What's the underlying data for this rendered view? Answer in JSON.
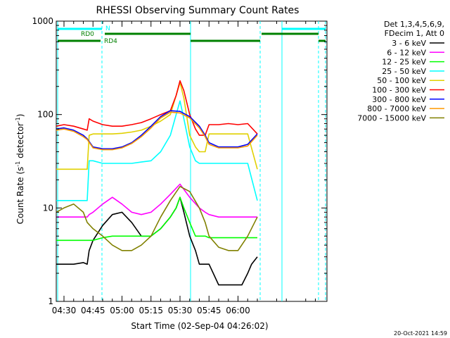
{
  "chart_data": {
    "type": "line",
    "title": "RHESSI Observing Summary Count Rates",
    "xlabel": "Start Time (02-Sep-04 04:26:02)",
    "ylabel_main": "Count Rate (s",
    "ylabel_sup1": "-1",
    "ylabel_mid": " detector",
    "ylabel_sup2": "-1",
    "ylabel_end": ")",
    "y_scale": "log",
    "ylim": [
      1,
      1000
    ],
    "x_range_minutes": [
      26,
      166
    ],
    "x_ticks": [
      {
        "label": "04:30",
        "minute": 30
      },
      {
        "label": "04:45",
        "minute": 45
      },
      {
        "label": "05:00",
        "minute": 60
      },
      {
        "label": "05:15",
        "minute": 75
      },
      {
        "label": "05:30",
        "minute": 90
      },
      {
        "label": "05:45",
        "minute": 105
      },
      {
        "label": "06:00",
        "minute": 120
      }
    ],
    "y_ticks": [
      {
        "label": "1",
        "value": 1
      },
      {
        "label": "10",
        "value": 10
      },
      {
        "label": "100",
        "value": 100
      },
      {
        "label": "1000",
        "value": 1000
      }
    ],
    "legend_header": [
      "Det 1,3,4,5,6,9,",
      "FDecim 1, Att 0"
    ],
    "footer_date": "20-Oct-2021 14:59",
    "flags": [
      {
        "label": "N",
        "color": "#00ffff"
      },
      {
        "label": "RD0",
        "color": "#008000"
      },
      {
        "label": "RD4",
        "color": "#008000"
      }
    ],
    "series": [
      {
        "name": "3 - 6 keV",
        "color": "#000000",
        "x": [
          26,
          30,
          35,
          40,
          42,
          43,
          45,
          50,
          55,
          60,
          65,
          70,
          75,
          80,
          85,
          88,
          90,
          92,
          95,
          98,
          100,
          103,
          105,
          110,
          115,
          120,
          122,
          125,
          127,
          130
        ],
        "y": [
          2.5,
          2.5,
          2.5,
          2.6,
          2.5,
          3.5,
          4.5,
          6.5,
          8.5,
          9,
          7,
          5,
          5,
          6,
          8,
          10,
          13,
          9,
          5,
          3.5,
          2.5,
          2.5,
          2.5,
          1.5,
          1.5,
          1.5,
          1.5,
          2,
          2.5,
          3
        ]
      },
      {
        "name": "6 - 12 keV",
        "color": "#ff00ff",
        "x": [
          26,
          30,
          35,
          40,
          42,
          43,
          45,
          50,
          55,
          60,
          65,
          70,
          75,
          80,
          85,
          90,
          95,
          100,
          103,
          105,
          110,
          115,
          120,
          125,
          130
        ],
        "y": [
          8,
          8,
          8,
          8,
          8,
          8.5,
          9,
          11,
          13,
          11,
          9,
          8.5,
          9,
          11,
          14,
          18,
          13,
          10,
          9,
          8.5,
          8,
          8,
          8,
          8,
          8
        ]
      },
      {
        "name": "12 - 25 keV",
        "color": "#00ff00",
        "x": [
          26,
          30,
          35,
          40,
          42,
          43,
          45,
          50,
          55,
          60,
          65,
          70,
          75,
          80,
          85,
          88,
          90,
          92,
          95,
          98,
          100,
          103,
          105,
          110,
          115,
          120,
          125,
          130
        ],
        "y": [
          4.5,
          4.5,
          4.5,
          4.5,
          4.5,
          4.5,
          4.5,
          4.8,
          5,
          5,
          5,
          5,
          5,
          6,
          8,
          10,
          13,
          10,
          7,
          5,
          5,
          5,
          4.8,
          4.8,
          4.8,
          4.8,
          4.8,
          4.8
        ]
      },
      {
        "name": "25 - 50 keV",
        "color": "#00ffff",
        "x": [
          26,
          30,
          35,
          40,
          42,
          43,
          45,
          50,
          55,
          60,
          65,
          70,
          75,
          80,
          85,
          88,
          90,
          92,
          95,
          98,
          100,
          103,
          105,
          110,
          115,
          120,
          125,
          130
        ],
        "y": [
          12,
          12,
          12,
          12,
          12,
          32,
          32,
          30,
          30,
          30,
          30,
          31,
          32,
          40,
          60,
          100,
          140,
          90,
          45,
          32,
          30,
          30,
          30,
          30,
          30,
          30,
          30,
          12
        ]
      },
      {
        "name": "50 - 100 keV",
        "color": "#e0d000",
        "x": [
          26,
          30,
          35,
          40,
          42,
          43,
          45,
          50,
          55,
          60,
          65,
          70,
          75,
          80,
          85,
          88,
          90,
          92,
          95,
          98,
          100,
          103,
          105,
          110,
          115,
          120,
          125,
          130
        ],
        "y": [
          26,
          26,
          26,
          26,
          26,
          60,
          62,
          62,
          62,
          63,
          65,
          68,
          75,
          85,
          100,
          160,
          220,
          150,
          60,
          45,
          40,
          40,
          62,
          62,
          62,
          62,
          62,
          26
        ]
      },
      {
        "name": "100 - 300 keV",
        "color": "#ff0000",
        "x": [
          26,
          30,
          35,
          40,
          42,
          43,
          45,
          50,
          55,
          60,
          65,
          70,
          75,
          80,
          85,
          88,
          90,
          92,
          95,
          98,
          100,
          103,
          105,
          110,
          115,
          120,
          125,
          130
        ],
        "y": [
          75,
          78,
          75,
          70,
          68,
          90,
          85,
          78,
          75,
          75,
          78,
          82,
          90,
          100,
          110,
          160,
          230,
          180,
          100,
          70,
          60,
          60,
          78,
          78,
          80,
          78,
          80,
          62
        ]
      },
      {
        "name": "300 - 800 keV",
        "color": "#0000ff",
        "x": [
          26,
          30,
          35,
          40,
          42,
          45,
          50,
          55,
          60,
          65,
          70,
          75,
          80,
          85,
          90,
          95,
          100,
          103,
          105,
          110,
          115,
          120,
          125,
          130
        ],
        "y": [
          70,
          72,
          68,
          60,
          55,
          45,
          43,
          43,
          45,
          50,
          60,
          75,
          95,
          110,
          108,
          95,
          75,
          60,
          50,
          45,
          45,
          45,
          48,
          62
        ]
      },
      {
        "name": "800 - 7000 keV",
        "color": "#ff9900",
        "x": [
          26,
          30,
          35,
          40,
          42,
          45,
          50,
          55,
          60,
          65,
          70,
          75,
          80,
          85,
          90,
          95,
          100,
          103,
          105,
          110,
          115,
          120,
          125,
          130
        ],
        "y": [
          68,
          70,
          66,
          58,
          54,
          44,
          42,
          42,
          44,
          49,
          58,
          72,
          92,
          106,
          104,
          92,
          72,
          58,
          48,
          44,
          44,
          44,
          46,
          60
        ]
      },
      {
        "name": "7000 - 15000 keV",
        "color": "#808000",
        "x": [
          26,
          30,
          35,
          40,
          42,
          45,
          50,
          55,
          60,
          65,
          70,
          75,
          80,
          85,
          90,
          95,
          100,
          103,
          105,
          110,
          115,
          120,
          125,
          130
        ],
        "y": [
          9,
          10,
          11,
          9,
          7,
          6,
          5,
          4,
          3.5,
          3.5,
          4,
          5,
          8,
          12,
          17,
          15,
          10,
          7,
          5,
          3.8,
          3.5,
          3.5,
          5,
          8
        ]
      }
    ]
  }
}
